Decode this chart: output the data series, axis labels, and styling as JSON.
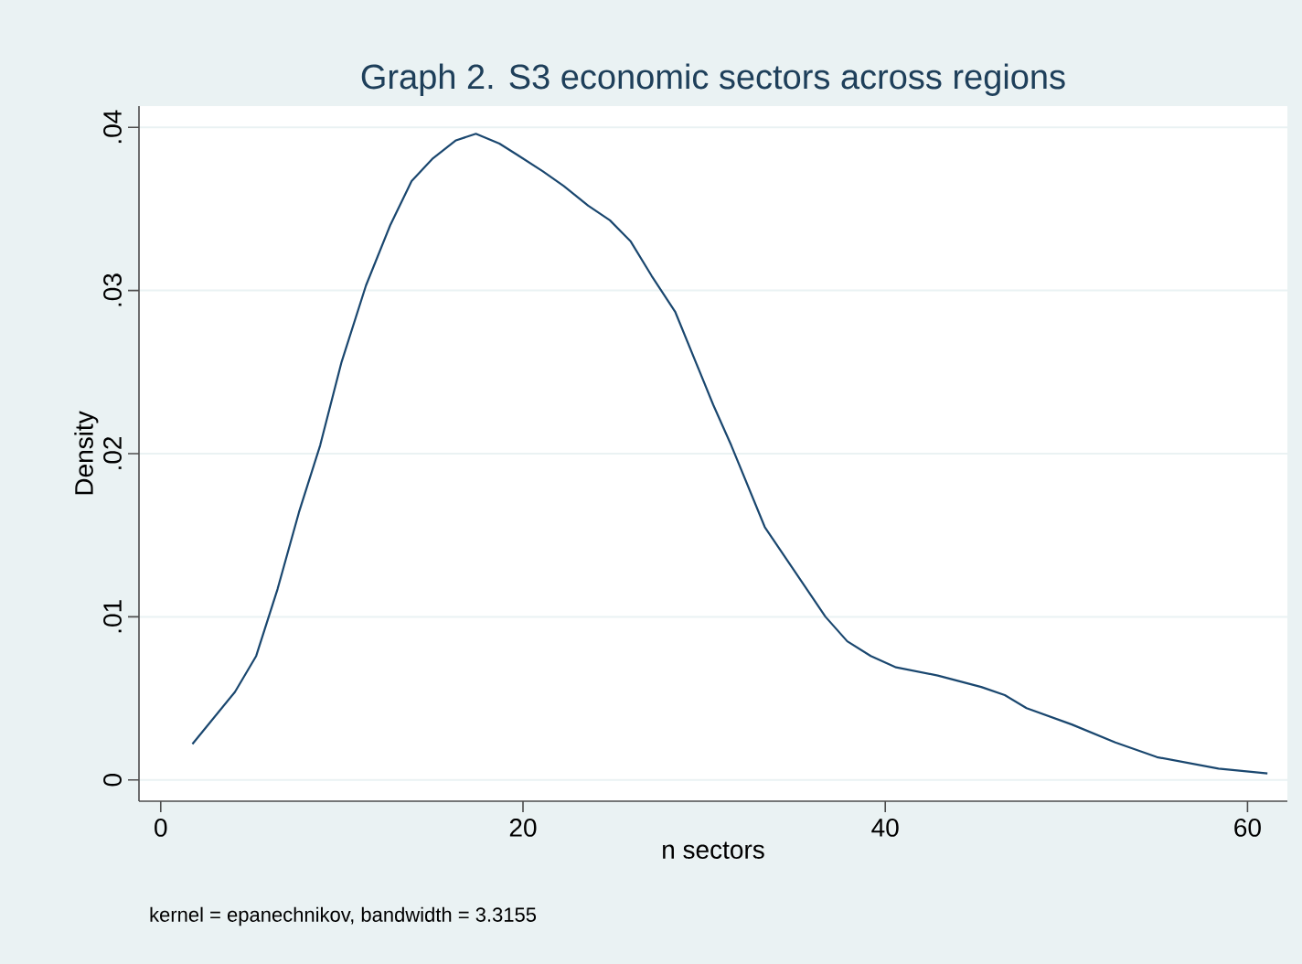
{
  "chart_data": {
    "type": "line",
    "title": "Graph 2. S3 economic sectors across regions",
    "xlabel": "n sectors",
    "ylabel": "Density",
    "annotations": [
      "kernel = epanechnikov, bandwidth = 3.3155"
    ],
    "x": [
      1.75,
      4.1,
      5.27,
      6.45,
      7.63,
      8.8,
      9.98,
      11.33,
      12.67,
      13.85,
      15.03,
      16.3,
      17.4,
      18.7,
      19.7,
      21.1,
      22.25,
      23.6,
      24.8,
      25.95,
      27.1,
      28.4,
      30.5,
      31.5,
      33.35,
      36.7,
      37.9,
      39.2,
      40.6,
      42.9,
      45.3,
      46.6,
      47.8,
      50.3,
      52.7,
      55.0,
      58.4,
      61.1
    ],
    "series": [
      {
        "color": "#1a476f",
        "values": [
          0.0022,
          0.0054,
          0.0076,
          0.0117,
          0.0164,
          0.0205,
          0.0256,
          0.0303,
          0.034,
          0.0367,
          0.0381,
          0.0392,
          0.0396,
          0.039,
          0.0383,
          0.0373,
          0.0364,
          0.0352,
          0.0343,
          0.033,
          0.0309,
          0.0287,
          0.023,
          0.0205,
          0.0155,
          0.01,
          0.0085,
          0.0076,
          0.0069,
          0.0064,
          0.0057,
          0.0052,
          0.0044,
          0.0034,
          0.0023,
          0.0014,
          0.0007,
          0.0004
        ]
      }
    ],
    "xlim": [
      -1.2,
      62.2
    ],
    "ylim": [
      -0.0013,
      0.0413
    ],
    "xticks": [
      0,
      20,
      40,
      60
    ],
    "yticks": [
      {
        "value": 0,
        "label": "0"
      },
      {
        "value": 0.01,
        "label": ".01"
      },
      {
        "value": 0.02,
        "label": ".02"
      },
      {
        "value": 0.03,
        "label": ".03"
      },
      {
        "value": 0.04,
        "label": ".04"
      }
    ],
    "grid": "y",
    "marker": "none",
    "line_style": "solid"
  }
}
